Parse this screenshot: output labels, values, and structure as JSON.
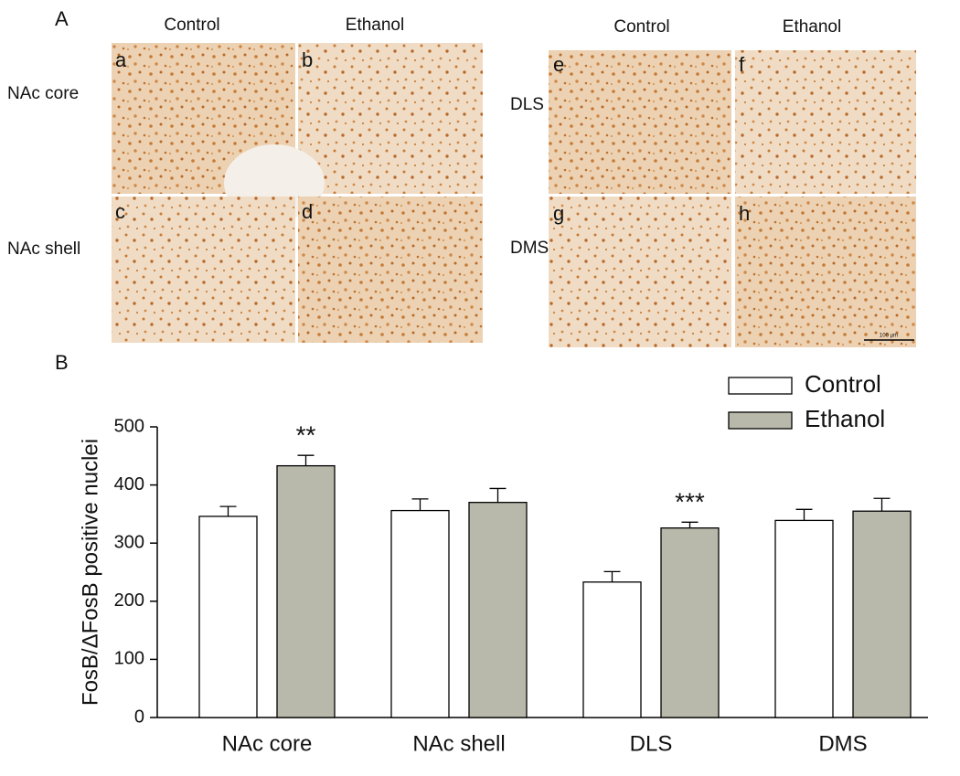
{
  "figure_a": {
    "label": "A",
    "groups": [
      {
        "columns": [
          "Control",
          "Ethanol"
        ],
        "rows": [
          "NAc core",
          "NAc shell"
        ],
        "panels": [
          "a",
          "b",
          "c",
          "d"
        ]
      },
      {
        "columns": [
          "Control",
          "Ethanol"
        ],
        "rows": [
          "DLS",
          "DMS"
        ],
        "panels": [
          "e",
          "f",
          "g",
          "h"
        ],
        "scale_bar": "100 µm"
      }
    ]
  },
  "figure_b_label": "B",
  "chart_data": {
    "type": "bar",
    "y_label": "FosB/ΔFosB positive nuclei",
    "categories": [
      "NAc core",
      "NAc shell",
      "DLS",
      "DMS"
    ],
    "series": [
      {
        "name": "Control",
        "color": "#ffffff",
        "values": [
          346,
          356,
          233,
          339
        ],
        "errors": [
          17,
          20,
          18,
          19
        ],
        "significance": [
          null,
          null,
          null,
          null
        ]
      },
      {
        "name": "Ethanol",
        "color": "#b9b9ab",
        "values": [
          433,
          370,
          326,
          355
        ],
        "errors": [
          18,
          24,
          10,
          22
        ],
        "significance": [
          "**",
          null,
          "***",
          null
        ]
      }
    ],
    "ylim": [
      0,
      500
    ],
    "yticks": [
      0,
      100,
      200,
      300,
      400,
      500
    ],
    "legend": "upper right"
  }
}
